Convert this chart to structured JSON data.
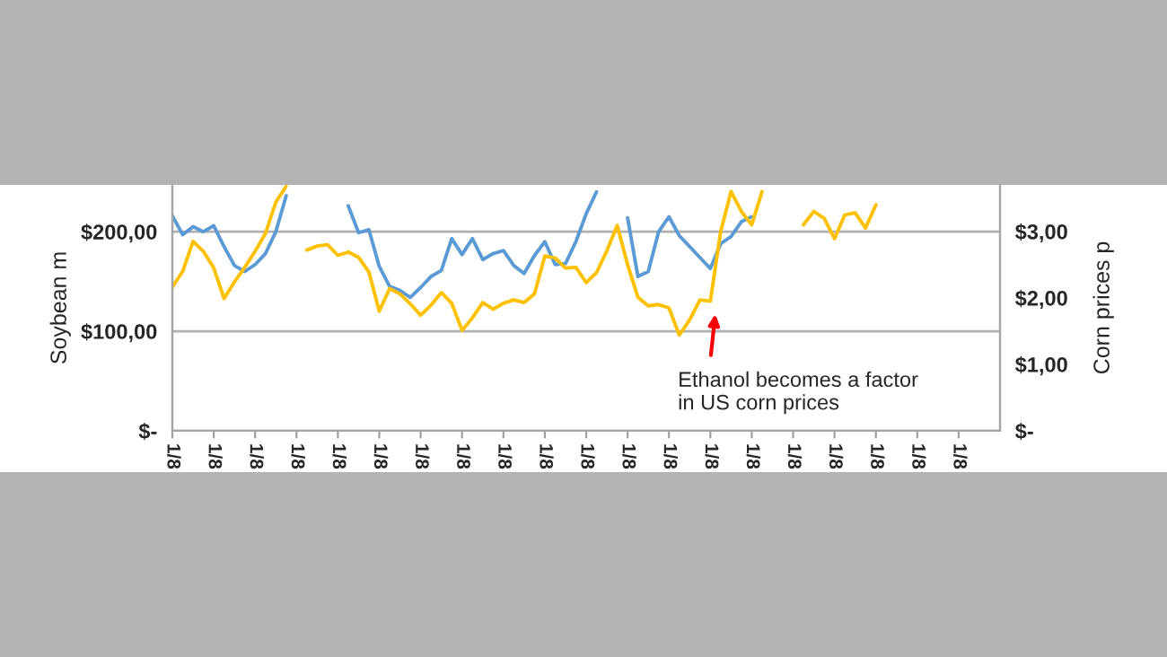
{
  "chart_data": {
    "type": "line",
    "ylabel": "Soybean m",
    "y2label": "Corn prices p",
    "categories": [
      "1/8",
      null,
      null,
      null,
      "1/8",
      null,
      null,
      null,
      "1/8",
      null,
      null,
      null,
      "1/8",
      null,
      null,
      null,
      "1/8",
      null,
      null,
      null,
      "1/8",
      null,
      null,
      null,
      "1/8",
      null,
      null,
      null,
      "1/8",
      null,
      null,
      null,
      "1/8",
      null,
      null,
      null,
      "1/8",
      null,
      null,
      null,
      "1/8",
      null,
      null,
      null,
      "1/8",
      null,
      null,
      null,
      "1/8",
      null,
      null,
      null,
      "1/8",
      null,
      null,
      null,
      "1/8",
      null,
      null,
      null,
      "1/8",
      null,
      null,
      null,
      "1/8",
      null,
      null,
      null,
      "1/8",
      null,
      null,
      null,
      "1/8",
      null,
      null,
      null,
      "1/8",
      null,
      null,
      null
    ],
    "ylim": [
      0,
      247
    ],
    "yticks": [
      {
        "value": 0,
        "label": "$-"
      },
      {
        "value": 100,
        "label": "$100,00"
      },
      {
        "value": 200,
        "label": "$200,00"
      }
    ],
    "y2lim": [
      0,
      3.7
    ],
    "y2ticks": [
      {
        "value": 0,
        "label": "$-"
      },
      {
        "value": 1,
        "label": "$1,00"
      },
      {
        "value": 2,
        "label": "$2,00"
      },
      {
        "value": 3,
        "label": "$3,00"
      }
    ],
    "grid": "y",
    "series": [
      {
        "color": "#5b9bd5",
        "values": [
          216,
          197,
          205,
          200,
          206,
          185,
          166,
          160,
          167,
          178,
          200,
          236,
          null,
          null,
          null,
          null,
          null,
          226,
          199,
          202,
          165,
          145,
          141,
          134,
          144,
          155,
          161,
          193,
          177,
          193,
          172,
          178,
          181,
          166,
          158,
          176,
          190,
          167,
          168,
          190,
          218,
          240,
          null,
          null,
          214,
          155,
          160,
          200,
          215,
          196,
          185,
          174,
          163,
          188,
          195,
          210,
          215,
          null,
          null,
          null,
          null,
          null,
          null,
          null,
          null,
          null,
          null,
          null,
          null,
          null,
          null,
          null,
          null,
          null,
          null,
          null,
          null,
          null,
          null,
          null
        ]
      },
      {
        "color": "#ffc000",
        "axis": "y2",
        "values": [
          2.16,
          2.4,
          2.85,
          2.7,
          2.45,
          1.99,
          2.24,
          2.46,
          2.7,
          2.97,
          3.44,
          3.68,
          null,
          2.72,
          2.78,
          2.8,
          2.64,
          2.69,
          2.61,
          2.39,
          1.8,
          2.14,
          2.06,
          1.91,
          1.74,
          1.89,
          2.08,
          1.92,
          1.51,
          1.7,
          1.93,
          1.83,
          1.92,
          1.97,
          1.93,
          2.06,
          2.63,
          2.6,
          2.45,
          2.46,
          2.23,
          2.38,
          2.71,
          3.09,
          2.5,
          2.01,
          1.88,
          1.9,
          1.85,
          1.44,
          1.67,
          1.97,
          1.95,
          3.0,
          3.6,
          3.3,
          3.1,
          3.6,
          null,
          null,
          null,
          3.1,
          3.3,
          3.2,
          2.89,
          3.25,
          3.28,
          3.05,
          3.4,
          null,
          null,
          null,
          null,
          null,
          null,
          null,
          null,
          null,
          null,
          null
        ]
      }
    ],
    "annotations": [
      "Ethanol becomes a factor\nin US corn prices"
    ]
  }
}
